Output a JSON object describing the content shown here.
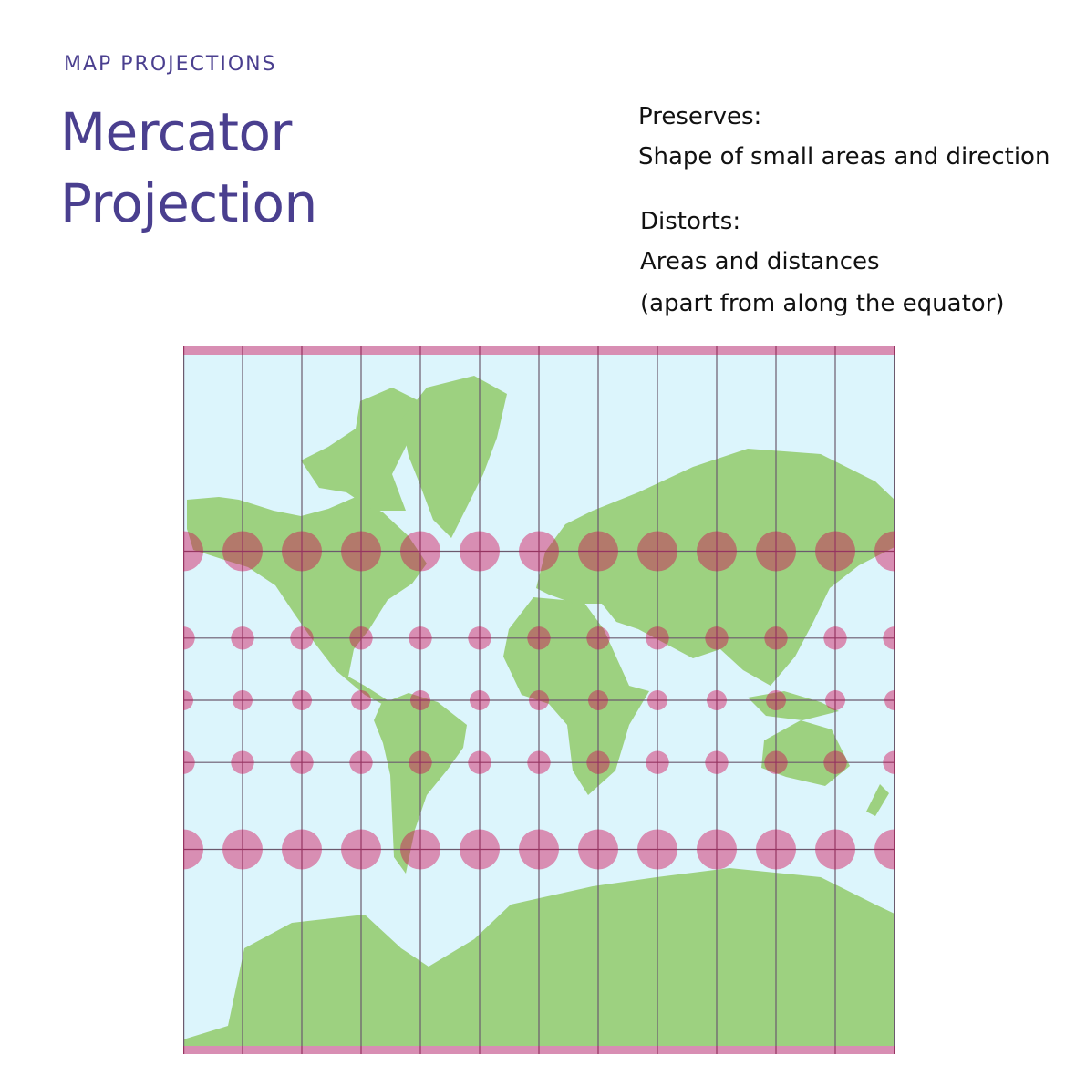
{
  "header": {
    "kicker": "MAP PROJECTIONS",
    "title_line1": "Mercator",
    "title_line2": "Projection"
  },
  "info": {
    "preserves_label": "Preserves:",
    "preserves_text": "Shape of small areas and direction",
    "distorts_label": "Distorts:",
    "distorts_line1": "Areas and distances",
    "distorts_line2": "(apart from along the equator)"
  },
  "map": {
    "projection": "mercator",
    "graticule_meridian_step_deg": 30,
    "graticule_parallels_deg": [
      60,
      30,
      0,
      -30,
      -60
    ],
    "tissot_indicatrix_lats": [
      60,
      30,
      0,
      -30,
      -60
    ],
    "tissot_indicatrix_lons": [
      -180,
      -150,
      -120,
      -90,
      -60,
      -30,
      0,
      30,
      60,
      90,
      120,
      150,
      180
    ],
    "colors": {
      "ocean": "#dcf5fc",
      "land": "#9dd180",
      "indicatrix": "#d2004e",
      "graticule": "#6b5a6e"
    }
  }
}
